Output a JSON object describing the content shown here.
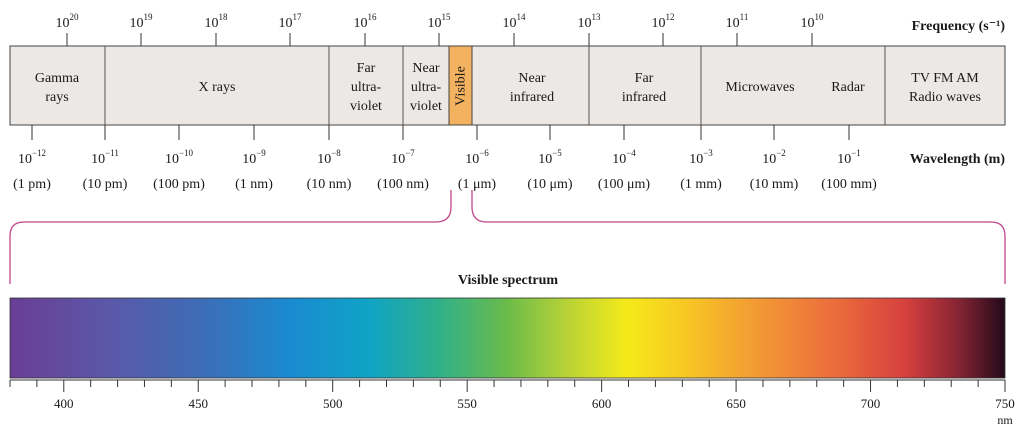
{
  "frequency_label": "Frequency (s⁻¹)",
  "wavelength_label": "Wavelength (m)",
  "frequency_ticks": [
    {
      "base": "10",
      "exp": "20"
    },
    {
      "base": "10",
      "exp": "19"
    },
    {
      "base": "10",
      "exp": "18"
    },
    {
      "base": "10",
      "exp": "17"
    },
    {
      "base": "10",
      "exp": "16"
    },
    {
      "base": "10",
      "exp": "15"
    },
    {
      "base": "10",
      "exp": "14"
    },
    {
      "base": "10",
      "exp": "13"
    },
    {
      "base": "10",
      "exp": "12"
    },
    {
      "base": "10",
      "exp": "11"
    },
    {
      "base": "10",
      "exp": "10"
    }
  ],
  "regions": [
    {
      "lines": [
        "Gamma",
        "rays"
      ]
    },
    {
      "lines": [
        "X rays"
      ]
    },
    {
      "lines": [
        "Far",
        "ultra-",
        "violet"
      ]
    },
    {
      "lines": [
        "Near",
        "ultra-",
        "violet"
      ]
    },
    {
      "lines": [
        "Visible"
      ]
    },
    {
      "lines": [
        "Near",
        "infrared"
      ]
    },
    {
      "lines": [
        "Far",
        "infrared"
      ]
    },
    {
      "lines": [
        "Microwaves"
      ]
    },
    {
      "lines": [
        "Radar"
      ]
    },
    {
      "lines": [
        "TV FM AM",
        "Radio waves"
      ]
    }
  ],
  "wavelength_ticks": [
    {
      "base": "10",
      "exp": "−12",
      "paren": "(1 pm)"
    },
    {
      "base": "10",
      "exp": "−11",
      "paren": "(10 pm)"
    },
    {
      "base": "10",
      "exp": "−10",
      "paren": "(100 pm)"
    },
    {
      "base": "10",
      "exp": "−9",
      "paren": "(1 nm)"
    },
    {
      "base": "10",
      "exp": "−8",
      "paren": "(10 nm)"
    },
    {
      "base": "10",
      "exp": "−7",
      "paren": "(100 nm)"
    },
    {
      "base": "10",
      "exp": "−6",
      "paren": "(1 μm)"
    },
    {
      "base": "10",
      "exp": "−5",
      "paren": "(10 μm)"
    },
    {
      "base": "10",
      "exp": "−4",
      "paren": "(100 μm)"
    },
    {
      "base": "10",
      "exp": "−3",
      "paren": "(1 mm)"
    },
    {
      "base": "10",
      "exp": "−2",
      "paren": "(10 mm)"
    },
    {
      "base": "10",
      "exp": "−1",
      "paren": "(100 mm)"
    }
  ],
  "visible_title": "Visible spectrum",
  "nm_ticks": [
    "400",
    "450",
    "500",
    "550",
    "600",
    "650",
    "700",
    "750"
  ],
  "nm_unit": "nm",
  "nm_range": [
    380,
    750
  ],
  "colors": {
    "band_fill": "#ebe8e6",
    "visible_fill": "#f3b25f",
    "bracket": "#c0468a",
    "line": "#333333"
  }
}
